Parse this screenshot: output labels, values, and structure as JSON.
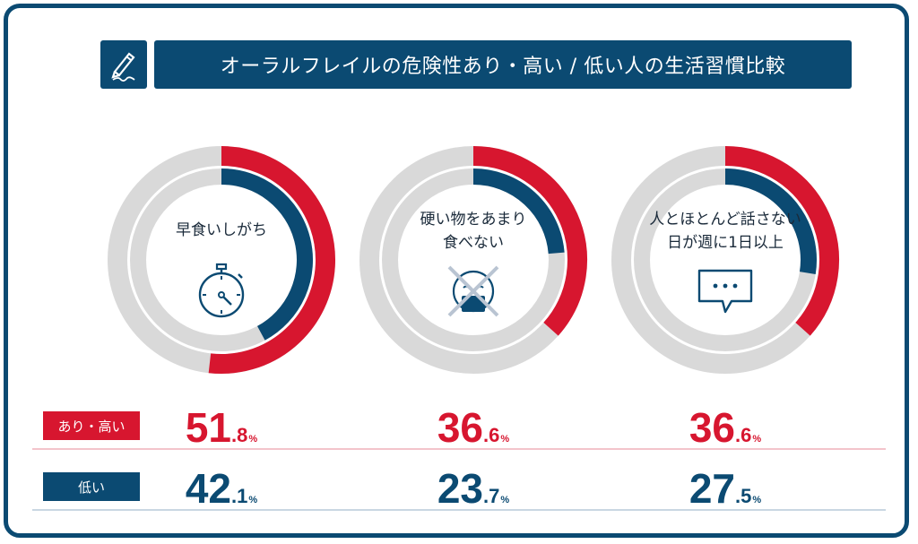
{
  "title": "オーラルフレイルの危険性あり・高い / 低い人の生活習慣比較",
  "colors": {
    "high": "#d7162f",
    "low": "#0b4a72",
    "track": "#d9d9d9",
    "high_line": "#f3c4cb",
    "low_line": "#c9d7e2"
  },
  "rows": {
    "high_label": "あり・高い",
    "low_label": "低い"
  },
  "chart_data": [
    {
      "type": "donut",
      "label": "早食いしがち",
      "icon": "stopwatch-icon",
      "series": [
        {
          "name": "あり・高い",
          "value": 51.8
        },
        {
          "name": "低い",
          "value": 42.1
        }
      ],
      "unit": "%"
    },
    {
      "type": "donut",
      "label": "硬い物をあまり\n食べない",
      "icon": "no-eating-icon",
      "series": [
        {
          "name": "あり・高い",
          "value": 36.6
        },
        {
          "name": "低い",
          "value": 23.7
        }
      ],
      "unit": "%"
    },
    {
      "type": "donut",
      "label": "人とほとんど話さない\n日が週に1日以上",
      "icon": "speech-bubble-icon",
      "series": [
        {
          "name": "あり・高い",
          "value": 36.6
        },
        {
          "name": "低い",
          "value": 27.5
        }
      ],
      "unit": "%"
    }
  ]
}
